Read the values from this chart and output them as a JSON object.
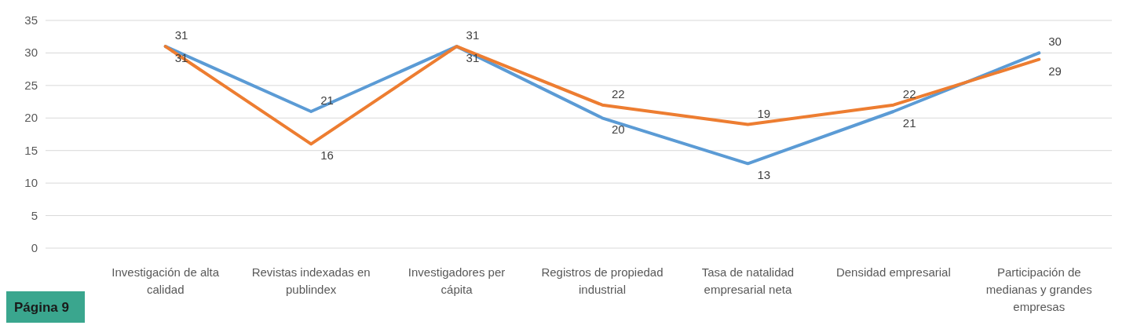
{
  "chart_data": {
    "type": "line",
    "categories": [
      "Investigación de alta calidad",
      "Revistas indexadas en publindex",
      "Investigadores per cápita",
      "Registros de propiedad industrial",
      "Tasa de natalidad empresarial neta",
      "Densidad empresarial",
      "Participación de medianas y grandes empresas"
    ],
    "series": [
      {
        "color": "#5b9bd5",
        "values": [
          31,
          21,
          31,
          20,
          13,
          21,
          30
        ]
      },
      {
        "color": "#ed7d31",
        "values": [
          31,
          16,
          31,
          22,
          19,
          22,
          29
        ]
      }
    ],
    "ylim": [
      0,
      35
    ],
    "yticks": [
      0,
      5,
      10,
      15,
      20,
      25,
      30,
      35
    ],
    "grid": "y",
    "marker": "none",
    "line_style": "solid",
    "data_labels": true,
    "annotations": [
      "Página 9"
    ]
  }
}
